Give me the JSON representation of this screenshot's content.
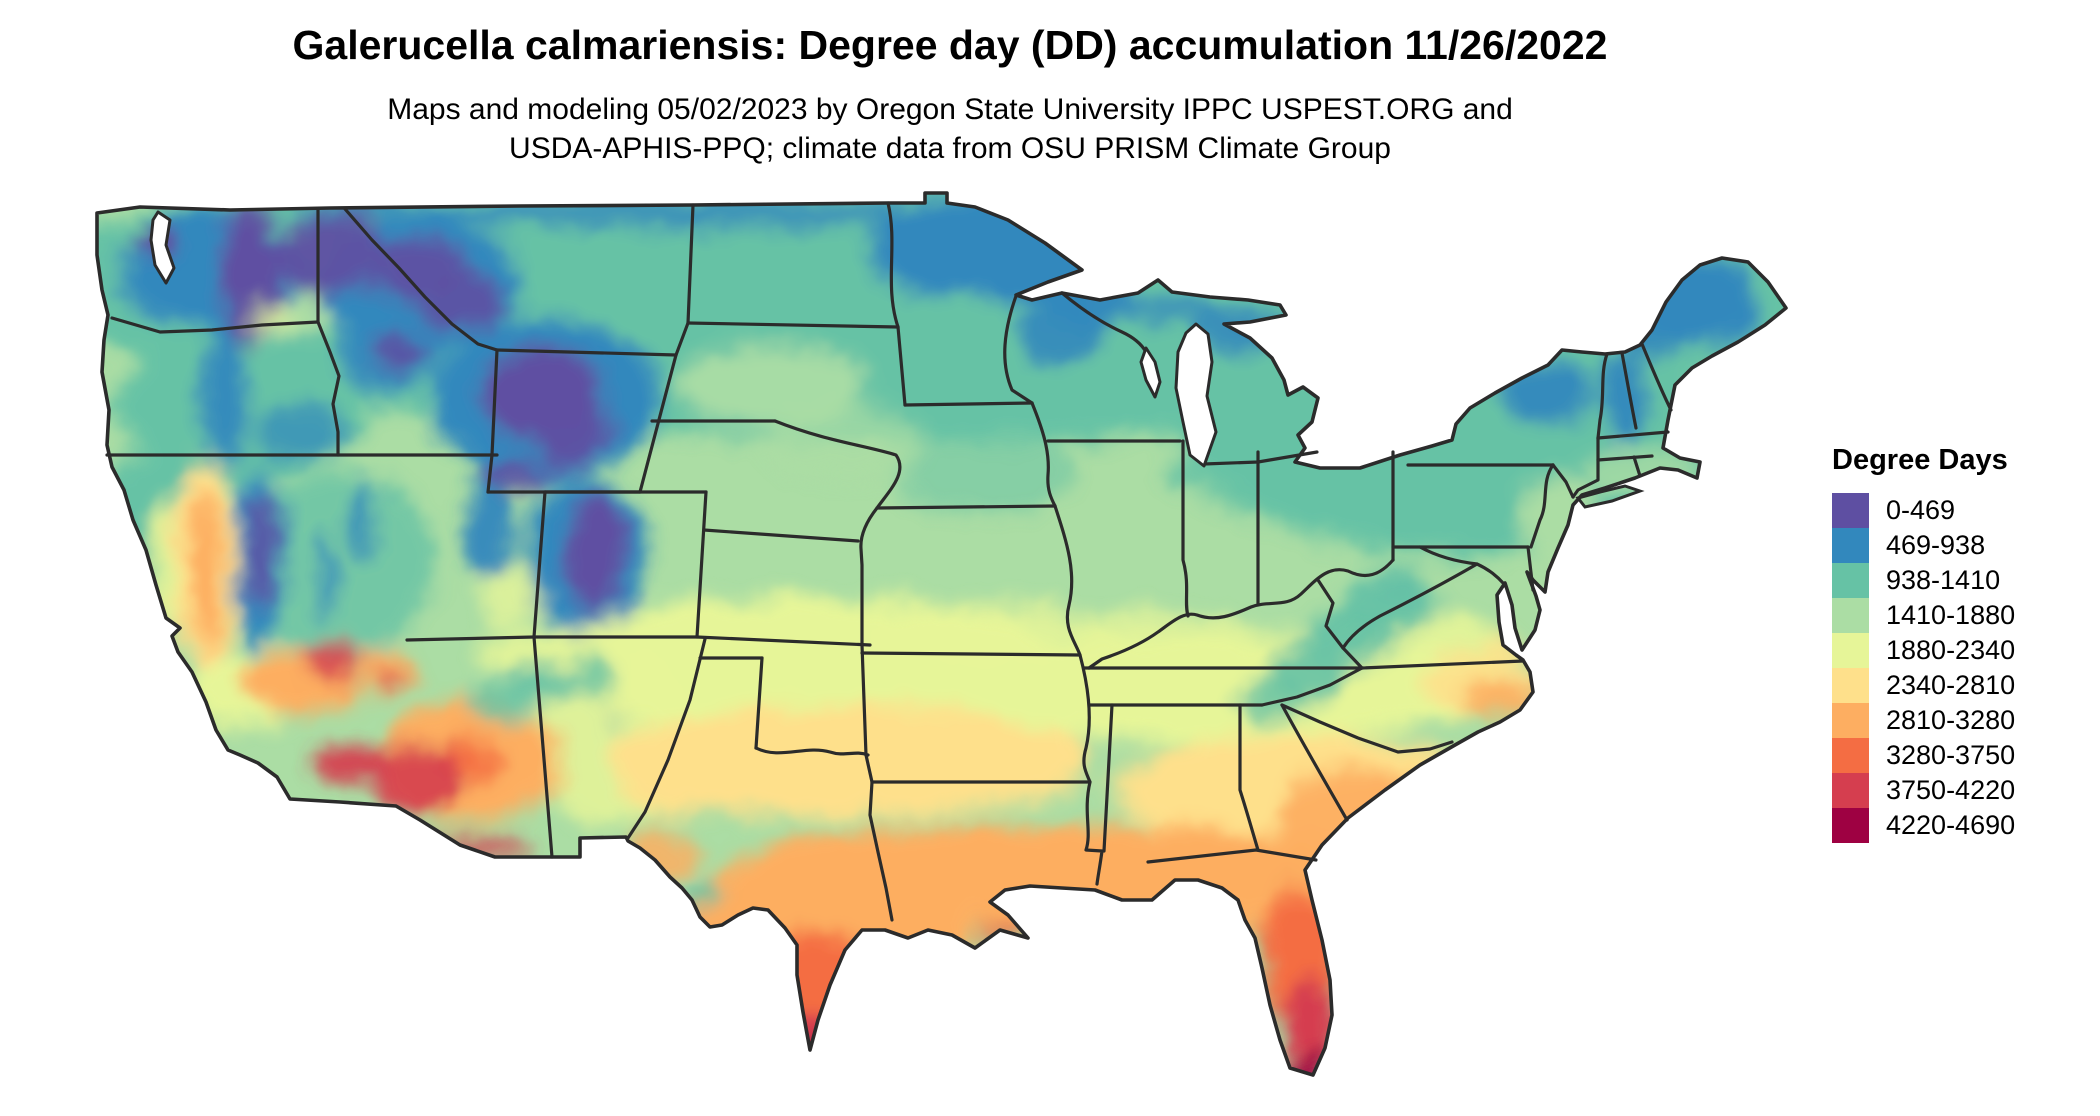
{
  "header": {
    "title": "Galerucella calmariensis: Degree day (DD) accumulation 11/26/2022",
    "subtitle_line1": "Maps and modeling 05/02/2023 by Oregon State University IPPC USPEST.ORG and",
    "subtitle_line2": "USDA-APHIS-PPQ; climate data from OSU PRISM Climate Group"
  },
  "legend": {
    "title": "Degree Days",
    "items": [
      {
        "range": "0-469",
        "color": "#5e4fa2"
      },
      {
        "range": "469-938",
        "color": "#3288bd"
      },
      {
        "range": "938-1410",
        "color": "#66c2a5"
      },
      {
        "range": "1410-1880",
        "color": "#abdda4"
      },
      {
        "range": "1880-2340",
        "color": "#e6f598"
      },
      {
        "range": "2340-2810",
        "color": "#fee08b"
      },
      {
        "range": "2810-3280",
        "color": "#fdae61"
      },
      {
        "range": "3280-3750",
        "color": "#f46d43"
      },
      {
        "range": "3750-4220",
        "color": "#d53e4f"
      },
      {
        "range": "4220-4690",
        "color": "#9e0142"
      }
    ]
  },
  "map": {
    "units": "DD",
    "date_shown": "11/26/2022",
    "border_color": "#2b2b2b",
    "water_color": "#ffffff",
    "palette_low_to_high": [
      "#5e4fa2",
      "#3288bd",
      "#66c2a5",
      "#abdda4",
      "#e6f598",
      "#fee08b",
      "#fdae61",
      "#f46d43",
      "#d53e4f",
      "#9e0142"
    ]
  }
}
